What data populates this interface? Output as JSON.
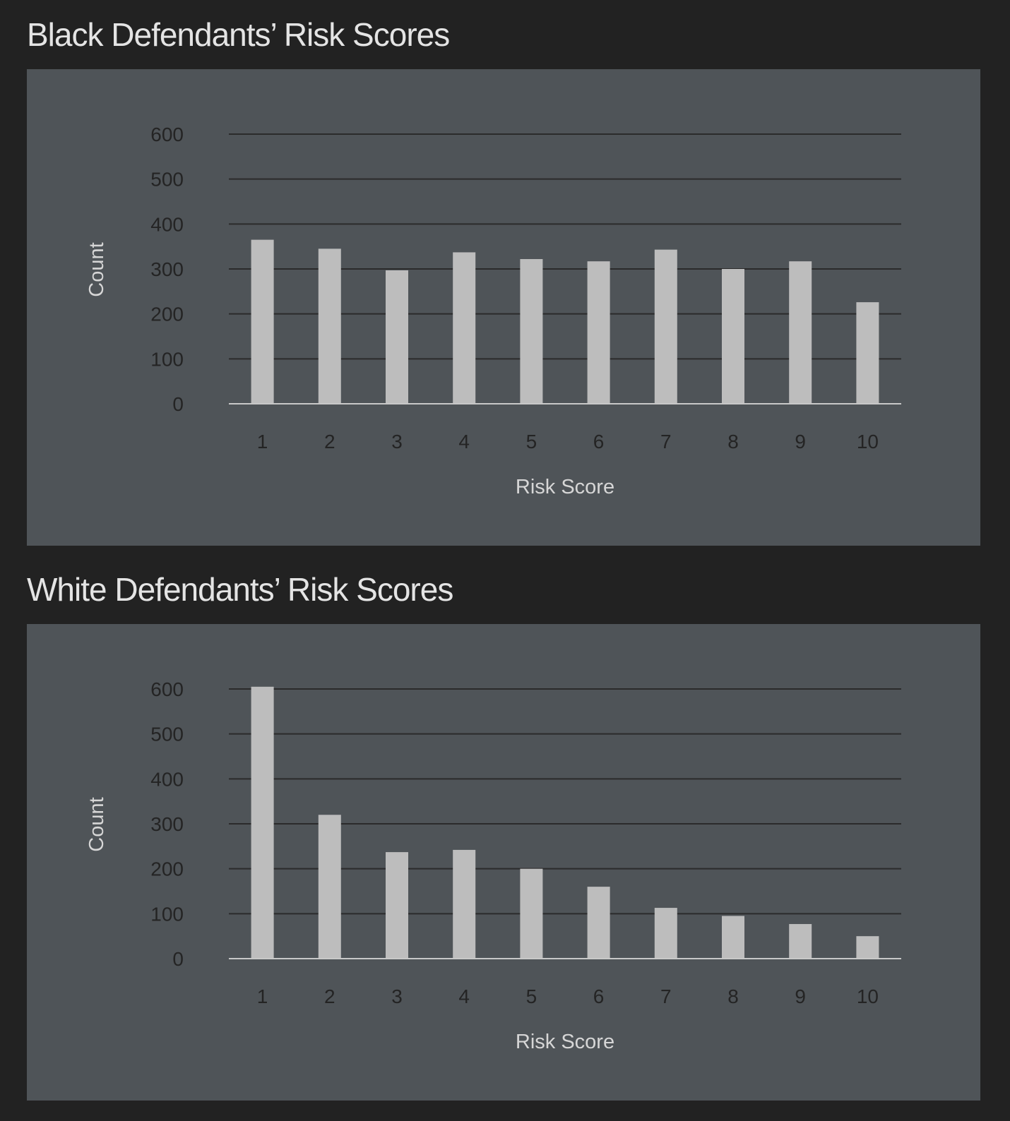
{
  "chart_data": [
    {
      "type": "bar",
      "title": "Black Defendants’ Risk Scores",
      "xlabel": "Risk Score",
      "ylabel": "Count",
      "categories": [
        "1",
        "2",
        "3",
        "4",
        "5",
        "6",
        "7",
        "8",
        "9",
        "10"
      ],
      "values": [
        365,
        345,
        297,
        337,
        322,
        317,
        343,
        300,
        317,
        226
      ],
      "ylim": [
        0,
        600
      ],
      "yticks": [
        "0",
        "100",
        "200",
        "300",
        "400",
        "500",
        "600"
      ],
      "grid": true,
      "colors": {
        "bar": "#bdbdbd",
        "grid": "#2b2b2b",
        "baseline": "#c8c8c8",
        "panel": "#4f5458",
        "background": "#222222"
      }
    },
    {
      "type": "bar",
      "title": "White Defendants’ Risk Scores",
      "xlabel": "Risk Score",
      "ylabel": "Count",
      "categories": [
        "1",
        "2",
        "3",
        "4",
        "5",
        "6",
        "7",
        "8",
        "9",
        "10"
      ],
      "values": [
        605,
        320,
        237,
        242,
        200,
        160,
        113,
        95,
        77,
        50
      ],
      "ylim": [
        0,
        600
      ],
      "yticks": [
        "0",
        "100",
        "200",
        "300",
        "400",
        "500",
        "600"
      ],
      "grid": true,
      "colors": {
        "bar": "#bdbdbd",
        "grid": "#2b2b2b",
        "baseline": "#c8c8c8",
        "panel": "#4f5458",
        "background": "#222222"
      }
    }
  ]
}
